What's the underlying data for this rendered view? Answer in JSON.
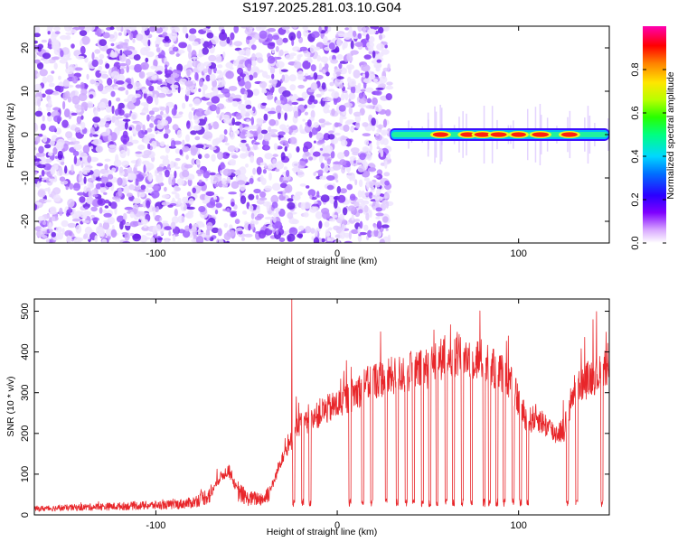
{
  "title": "S197.2025.281.03.10.G04",
  "colors": {
    "snr_line": "#e8262a",
    "noise_purple": "#7a2cf0",
    "axis": "#000000"
  },
  "chart_data": [
    {
      "type": "heatmap",
      "name": "spectrogram",
      "xlabel": "Height of straight line (km)",
      "ylabel": "Frequency (Hz)",
      "xlim": [
        -167,
        150
      ],
      "ylim": [
        -25,
        25
      ],
      "x_ticks": [
        -100,
        0,
        100
      ],
      "y_ticks": [
        -20,
        -10,
        0,
        10,
        20
      ],
      "x_tick_labels": [
        "-100",
        "0",
        "100"
      ],
      "y_tick_labels": [
        "-20",
        "-10",
        "0",
        "10",
        "20"
      ],
      "noise_region_x": [
        -167,
        29
      ],
      "signal_region_x": [
        29,
        150
      ],
      "signal_frequency_hz": 0,
      "signal_peaks": [
        {
          "x": 57,
          "amp": 0.8
        },
        {
          "x": 72,
          "amp": 0.75
        },
        {
          "x": 80,
          "amp": 0.85
        },
        {
          "x": 89,
          "amp": 0.85
        },
        {
          "x": 100,
          "amp": 0.75
        },
        {
          "x": 112,
          "amp": 0.9
        },
        {
          "x": 128,
          "amp": 0.85
        }
      ],
      "colorbar": {
        "label": "Normalized spectral amplitude",
        "range": [
          0,
          1
        ],
        "ticks": [
          0.0,
          0.2,
          0.4,
          0.6,
          0.8
        ],
        "tick_labels": [
          "0.0",
          "0.2",
          "0.4",
          "0.6",
          "0.8"
        ]
      }
    },
    {
      "type": "line",
      "name": "snr",
      "xlabel": "Height of straight line (km)",
      "ylabel": "SNR (10 * v/v)",
      "xlim": [
        -167,
        150
      ],
      "ylim": [
        0,
        530
      ],
      "x_ticks": [
        -100,
        0,
        100
      ],
      "y_ticks": [
        0,
        100,
        200,
        300,
        400,
        500
      ],
      "x_tick_labels": [
        "-100",
        "0",
        "100"
      ],
      "y_tick_labels": [
        "0",
        "100",
        "200",
        "300",
        "400",
        "500"
      ],
      "series": [
        {
          "name": "SNR",
          "envelope_x": [
            -167,
            -130,
            -90,
            -80,
            -70,
            -65,
            -60,
            -55,
            -50,
            -40,
            -35,
            -30,
            -27,
            -24,
            -20,
            -15,
            -10,
            0,
            10,
            20,
            30,
            40,
            50,
            60,
            70,
            80,
            85,
            90,
            95,
            100,
            105,
            110,
            115,
            120,
            125,
            128,
            130,
            140,
            150
          ],
          "envelope_y": [
            15,
            20,
            25,
            30,
            50,
            90,
            110,
            60,
            40,
            40,
            80,
            150,
            160,
            200,
            230,
            220,
            250,
            270,
            300,
            330,
            340,
            350,
            360,
            390,
            390,
            380,
            360,
            350,
            330,
            280,
            230,
            240,
            220,
            200,
            210,
            260,
            300,
            340,
            350
          ],
          "dropouts_x": [
            -24,
            -19,
            -15,
            7,
            14,
            19,
            27,
            33,
            38,
            42,
            47,
            51,
            55,
            60,
            64,
            69,
            74,
            81,
            84,
            88,
            92,
            97,
            101,
            105,
            127,
            132,
            146
          ],
          "dropout_floor": 40,
          "spike": {
            "x": -25,
            "y": 530
          }
        }
      ]
    }
  ]
}
